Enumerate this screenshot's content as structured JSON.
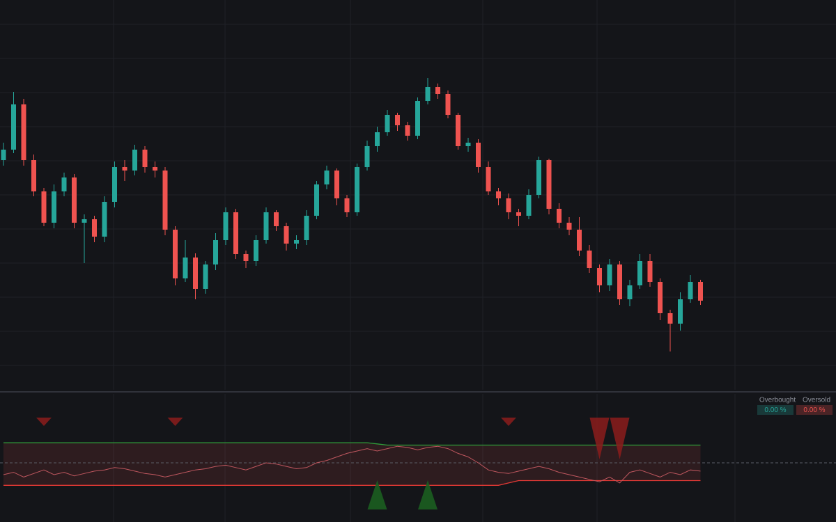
{
  "chart_data": [
    {
      "type": "candlestick",
      "up_color": "#26a69a",
      "down_color": "#ef5350",
      "ylim": [
        0,
        560
      ],
      "open": [
        330,
        345,
        410,
        330,
        285,
        240,
        285,
        305,
        240,
        245,
        220,
        270,
        320,
        315,
        345,
        320,
        315,
        230,
        160,
        190,
        145,
        180,
        215,
        255,
        195,
        185,
        215,
        255,
        235,
        210,
        215,
        250,
        295,
        315,
        275,
        255,
        320,
        350,
        370,
        395,
        380,
        365,
        415,
        435,
        425,
        395,
        350,
        355,
        320,
        285,
        275,
        255,
        250,
        280,
        330,
        260,
        240,
        230,
        200,
        175,
        150,
        180,
        130,
        150,
        185,
        155,
        110,
        95,
        130,
        155
      ],
      "high": [
        355,
        428,
        418,
        338,
        290,
        295,
        312,
        310,
        252,
        250,
        278,
        328,
        330,
        352,
        350,
        328,
        320,
        235,
        215,
        196,
        185,
        225,
        262,
        260,
        200,
        222,
        262,
        258,
        240,
        222,
        258,
        300,
        322,
        318,
        280,
        325,
        358,
        378,
        402,
        398,
        385,
        420,
        448,
        440,
        430,
        398,
        362,
        360,
        328,
        290,
        282,
        260,
        288,
        335,
        332,
        268,
        248,
        248,
        208,
        180,
        188,
        185,
        158,
        195,
        195,
        160,
        115,
        140,
        165,
        158
      ],
      "low": [
        322,
        340,
        322,
        278,
        235,
        232,
        278,
        232,
        182,
        212,
        212,
        262,
        300,
        308,
        312,
        305,
        222,
        150,
        155,
        130,
        138,
        172,
        208,
        188,
        175,
        178,
        210,
        228,
        200,
        202,
        208,
        245,
        288,
        265,
        248,
        250,
        315,
        342,
        365,
        372,
        358,
        360,
        410,
        418,
        390,
        345,
        342,
        312,
        280,
        265,
        245,
        235,
        245,
        275,
        252,
        232,
        222,
        192,
        168,
        140,
        142,
        122,
        120,
        145,
        148,
        100,
        55,
        85,
        125,
        122
      ],
      "close": [
        345,
        410,
        330,
        285,
        240,
        285,
        305,
        240,
        245,
        220,
        270,
        320,
        315,
        345,
        320,
        315,
        230,
        160,
        190,
        145,
        180,
        215,
        255,
        195,
        185,
        215,
        255,
        235,
        210,
        215,
        250,
        295,
        315,
        275,
        255,
        320,
        350,
        370,
        395,
        380,
        365,
        415,
        435,
        425,
        395,
        350,
        355,
        320,
        285,
        275,
        255,
        250,
        280,
        330,
        260,
        240,
        230,
        200,
        175,
        150,
        180,
        130,
        150,
        185,
        155,
        110,
        95,
        130,
        155,
        128
      ]
    },
    {
      "type": "line",
      "ylim": [
        0,
        100
      ],
      "midline": 50,
      "band_fill": "#ef5350",
      "series": [
        {
          "color": "#2e9d3a",
          "values": [
            67,
            67,
            67,
            67,
            67,
            67,
            67,
            67,
            67,
            67,
            67,
            67,
            67,
            67,
            67,
            67,
            67,
            67,
            67,
            67,
            67,
            67,
            67,
            67,
            67,
            67,
            67,
            67,
            67,
            67,
            67,
            67,
            67,
            67,
            67,
            67,
            67,
            66,
            65,
            65,
            65,
            65,
            65,
            65,
            65,
            65,
            65,
            65,
            65,
            65,
            65,
            65,
            65,
            65,
            65,
            65,
            65,
            65,
            65,
            65,
            65,
            65,
            65,
            65,
            65,
            65,
            65,
            65,
            65,
            65
          ]
        },
        {
          "color": "#e53935",
          "values": [
            31,
            31,
            31,
            31,
            31,
            31,
            31,
            31,
            31,
            31,
            31,
            31,
            31,
            31,
            31,
            31,
            31,
            31,
            31,
            31,
            31,
            31,
            31,
            31,
            31,
            31,
            31,
            31,
            31,
            31,
            31,
            31,
            31,
            31,
            31,
            31,
            31,
            31,
            31,
            31,
            31,
            31,
            31,
            31,
            31,
            31,
            31,
            31,
            31,
            31,
            33,
            35,
            35,
            35,
            35,
            35,
            35,
            35,
            35,
            35,
            35,
            35,
            35,
            35,
            35,
            35,
            35,
            35,
            35,
            35
          ]
        },
        {
          "color": "#c0575f",
          "values": [
            40,
            42,
            38,
            41,
            44,
            40,
            42,
            39,
            41,
            43,
            44,
            46,
            45,
            43,
            41,
            40,
            38,
            40,
            42,
            44,
            45,
            47,
            48,
            46,
            44,
            47,
            50,
            49,
            47,
            45,
            46,
            50,
            52,
            55,
            58,
            60,
            62,
            60,
            62,
            64,
            63,
            61,
            63,
            64,
            62,
            58,
            55,
            50,
            44,
            42,
            41,
            43,
            45,
            47,
            45,
            42,
            40,
            38,
            36,
            34,
            38,
            33,
            42,
            44,
            41,
            38,
            42,
            40,
            44,
            43
          ]
        }
      ],
      "sell_signals": [
        4,
        17,
        50,
        59,
        61
      ],
      "buy_signals": [
        37,
        42
      ],
      "sell_color": "#8b1c1c",
      "buy_color": "#1b5e20",
      "legend_items": {
        "names": [
          "Overbought",
          "Oversold"
        ],
        "values": [
          0,
          0
        ],
        "value_labels": [
          "0.00 %",
          "0.00 %"
        ],
        "colors": [
          "#26a69a",
          "#ef5350"
        ]
      }
    }
  ]
}
